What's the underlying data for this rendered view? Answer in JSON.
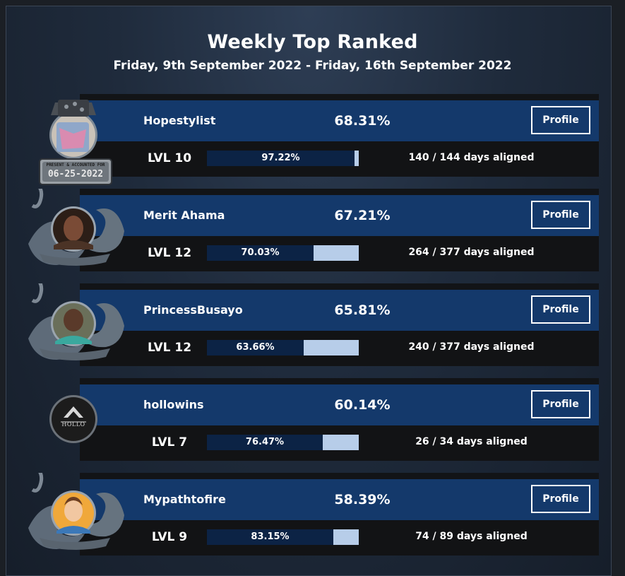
{
  "header": {
    "title": "Weekly Top Ranked",
    "subtitle": "Friday, 9th September 2022 - Friday, 16th September 2022"
  },
  "colors": {
    "card_blue": "#14396b",
    "card_dark": "#121315",
    "bar_fill": "#0c2345",
    "bar_track": "#b7cde9"
  },
  "users": [
    {
      "name": "Hopestylist",
      "score": "68.31%",
      "level": "LVL 10",
      "progress": 0.9722,
      "progress_label": "97.22%",
      "days": "140 / 144 days aligned",
      "profile_label": "Profile",
      "avatar_icon": "top-hat-avatar-icon",
      "badge": "PRESENT & ACCOUNTED FOR",
      "badge_date": "06-25-2022"
    },
    {
      "name": "Merit Ahama",
      "score": "67.21%",
      "level": "LVL 12",
      "progress": 0.7003,
      "progress_label": "70.03%",
      "days": "264 / 377 days aligned",
      "profile_label": "Profile",
      "avatar_icon": "wave-frame-avatar-icon"
    },
    {
      "name": "PrincessBusayo",
      "score": "65.81%",
      "level": "LVL 12",
      "progress": 0.6366,
      "progress_label": "63.66%",
      "days": "240 / 377 days aligned",
      "profile_label": "Profile",
      "avatar_icon": "wave-frame-avatar-icon"
    },
    {
      "name": "hollowins",
      "score": "60.14%",
      "level": "LVL 7",
      "progress": 0.7647,
      "progress_label": "76.47%",
      "days": "26 / 34 days aligned",
      "profile_label": "Profile",
      "avatar_icon": "hollo-logo-avatar-icon",
      "avatar_text": "HOLLO"
    },
    {
      "name": "Mypathtofire",
      "score": "58.39%",
      "level": "LVL 9",
      "progress": 0.8315,
      "progress_label": "83.15%",
      "days": "74 / 89 days aligned",
      "profile_label": "Profile",
      "avatar_icon": "wave-frame-avatar-icon"
    }
  ]
}
